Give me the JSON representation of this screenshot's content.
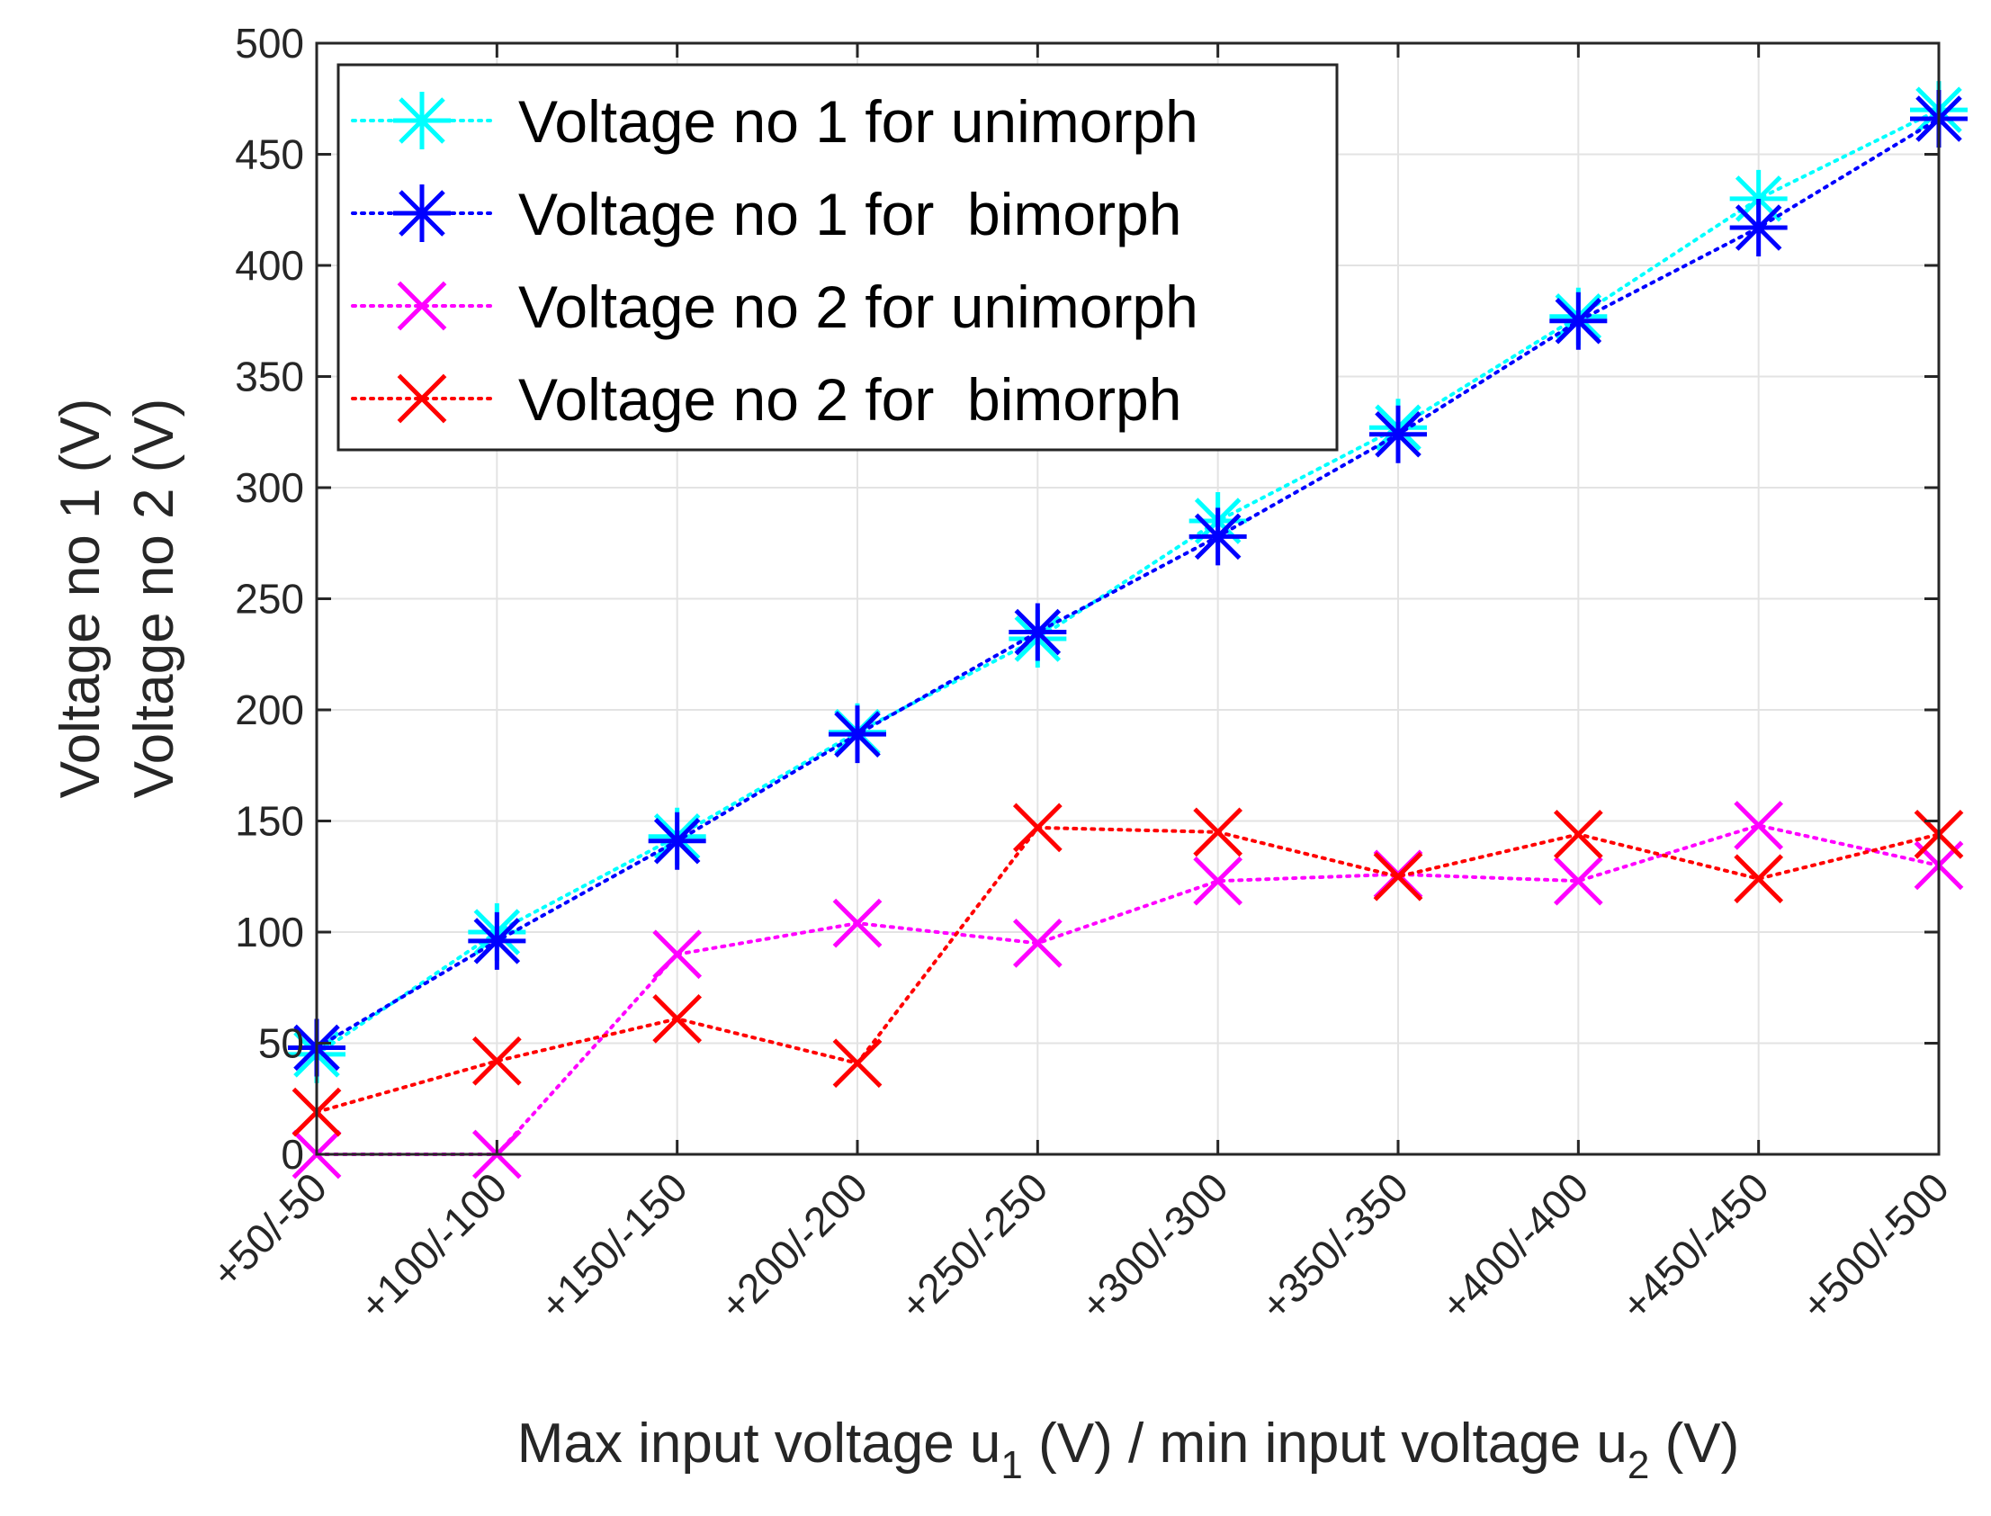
{
  "chart_data": {
    "type": "line",
    "categories": [
      "+50/-50",
      "+100/-100",
      "+150/-150",
      "+200/-200",
      "+250/-250",
      "+300/-300",
      "+350/-350",
      "+400/-400",
      "+450/-450",
      "+500/-500"
    ],
    "ylim": [
      0,
      500
    ],
    "yticks": [
      0,
      50,
      100,
      150,
      200,
      250,
      300,
      350,
      400,
      450,
      500
    ],
    "grid": true,
    "legend_position": "top-left",
    "ylabel_lines": [
      "Voltage no 1 (V)",
      "Voltage no 2 (V)"
    ],
    "xlabel_parts": [
      "Max input voltage u",
      "1",
      " (V) / min input voltage u",
      "2",
      " (V)"
    ],
    "series": [
      {
        "name": "Voltage no 1 for unimorph",
        "color": "#00FFFF",
        "marker": "asterisk",
        "values": [
          45,
          100,
          143,
          190,
          232,
          285,
          327,
          377,
          430,
          470
        ]
      },
      {
        "name": "Voltage no 1 for  bimorph",
        "color": "#0000FF",
        "marker": "asterisk",
        "values": [
          48,
          96,
          141,
          189,
          235,
          278,
          324,
          375,
          417,
          466
        ]
      },
      {
        "name": "Voltage no 2 for unimorph",
        "color": "#FF00FF",
        "marker": "x",
        "values": [
          0,
          0,
          90,
          104,
          95,
          123,
          126,
          123,
          148,
          130
        ]
      },
      {
        "name": "Voltage no 2 for  bimorph",
        "color": "#FF0000",
        "marker": "x",
        "values": [
          19,
          42,
          61,
          41,
          147,
          145,
          125,
          144,
          124,
          144
        ]
      }
    ]
  }
}
